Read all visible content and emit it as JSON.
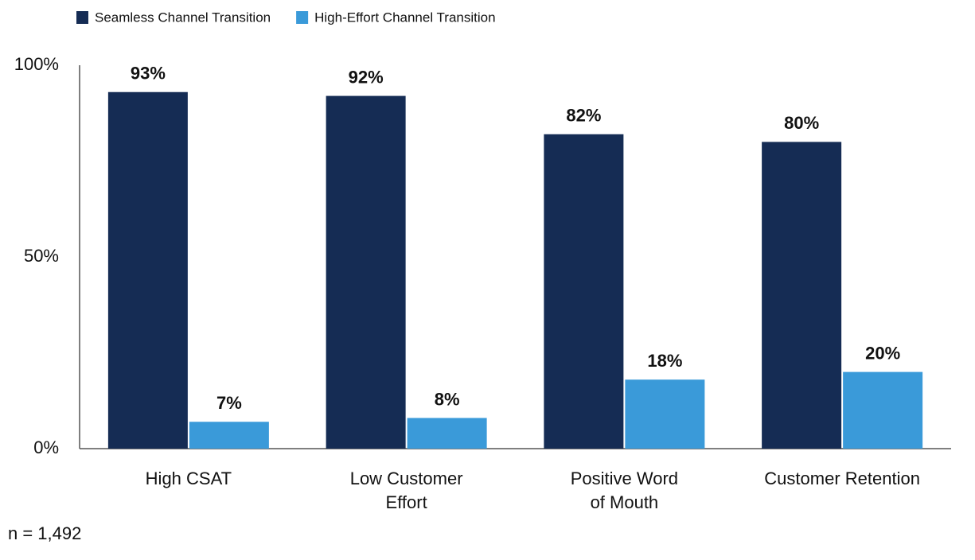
{
  "chart_data": {
    "type": "bar",
    "categories": [
      "High CSAT",
      "Low Customer\nEffort",
      "Positive Word\nof Mouth",
      "Customer Retention"
    ],
    "series": [
      {
        "name": "Seamless Channel Transition",
        "color": "#152c54",
        "values": [
          93,
          92,
          82,
          80
        ],
        "value_labels": [
          "93%",
          "92%",
          "82%",
          "80%"
        ]
      },
      {
        "name": "High-Effort Channel Transition",
        "color": "#3a9ad9",
        "values": [
          7,
          8,
          18,
          20
        ],
        "value_labels": [
          "7%",
          "8%",
          "18%",
          "20%"
        ]
      }
    ],
    "ylim": [
      0,
      100
    ],
    "yticks": [
      {
        "value": 0,
        "label": "0%"
      },
      {
        "value": 50,
        "label": "50%"
      },
      {
        "value": 100,
        "label": "100%"
      }
    ],
    "grid": false,
    "legend": "top-left",
    "note": "n = 1,492"
  }
}
